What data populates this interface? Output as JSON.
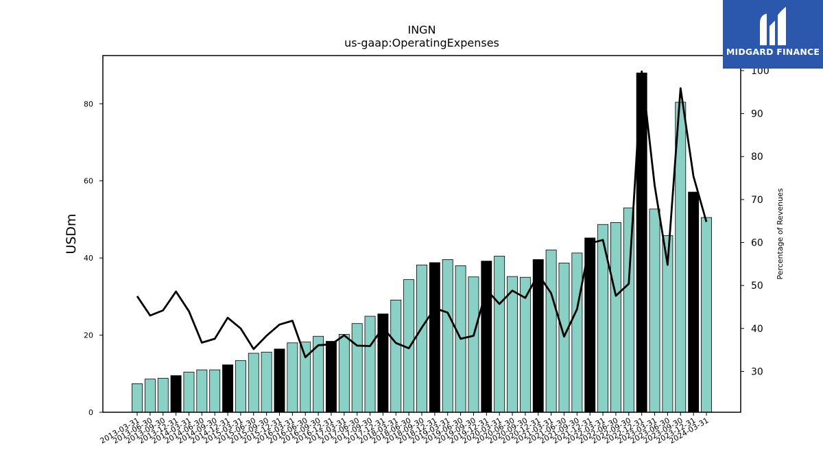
{
  "brand": {
    "name": "MIDGARD FINANCE"
  },
  "chart_data": {
    "type": "bar",
    "title": "INGN",
    "subtitle": "us-gaap:OperatingExpenses",
    "ylabel": "USDm",
    "y2label": "Percentage of Revenues",
    "ylim": [
      0,
      92.5
    ],
    "y2lim": [
      20.5,
      103.5
    ],
    "yticks": [
      0,
      20,
      40,
      60,
      80
    ],
    "y2ticks": [
      30,
      40,
      50,
      60,
      70,
      80,
      90,
      100
    ],
    "colors": {
      "bar": "#88d1c4",
      "bar_highlight": "#000000",
      "line": "#000000"
    },
    "categories": [
      "2013-03-31",
      "2013-06-30",
      "2013-09-30",
      "2013-12-31",
      "2014-03-31",
      "2014-06-30",
      "2014-09-30",
      "2014-12-31",
      "2015-03-31",
      "2015-06-30",
      "2015-09-30",
      "2015-12-31",
      "2016-03-31",
      "2016-06-30",
      "2016-09-30",
      "2016-12-31",
      "2017-03-31",
      "2017-06-30",
      "2017-09-30",
      "2017-12-31",
      "2018-03-31",
      "2018-06-30",
      "2018-09-30",
      "2018-12-31",
      "2019-03-31",
      "2019-06-30",
      "2019-09-30",
      "2019-12-31",
      "2020-03-31",
      "2020-06-30",
      "2020-09-30",
      "2020-12-31",
      "2021-03-31",
      "2021-06-30",
      "2021-09-30",
      "2021-12-31",
      "2022-03-31",
      "2022-06-30",
      "2022-09-30",
      "2022-12-31",
      "2023-03-31",
      "2023-06-30",
      "2023-09-30",
      "2023-12-31",
      "2024-03-31"
    ],
    "series": [
      {
        "kind": "bar",
        "axis": "left",
        "values": [
          7.4,
          8.6,
          8.8,
          9.5,
          10.4,
          11.0,
          11.0,
          12.3,
          13.4,
          15.3,
          15.6,
          16.4,
          18.0,
          18.2,
          19.7,
          18.4,
          20.2,
          23.0,
          24.9,
          25.5,
          29.1,
          34.4,
          38.2,
          38.8,
          39.6,
          38.0,
          35.1,
          39.2,
          40.5,
          35.2,
          35.0,
          39.6,
          42.1,
          38.7,
          41.3,
          45.2,
          48.7,
          49.2,
          53.0,
          88.0,
          52.7,
          45.8,
          80.4,
          57.1,
          50.5
        ],
        "highlighted": [
          false,
          false,
          false,
          true,
          false,
          false,
          false,
          true,
          false,
          false,
          false,
          true,
          false,
          false,
          false,
          true,
          false,
          false,
          false,
          true,
          false,
          false,
          false,
          true,
          false,
          false,
          false,
          true,
          false,
          false,
          false,
          true,
          false,
          false,
          false,
          true,
          false,
          false,
          false,
          true,
          false,
          false,
          false,
          true,
          false
        ]
      },
      {
        "kind": "line",
        "axis": "right",
        "values": [
          47.5,
          43.0,
          44.2,
          48.6,
          44.0,
          36.7,
          37.6,
          42.5,
          40.0,
          35.2,
          38.3,
          40.9,
          41.8,
          33.3,
          36.1,
          36.3,
          38.4,
          36.0,
          35.9,
          40.2,
          36.6,
          35.4,
          40.2,
          44.7,
          43.7,
          37.6,
          38.3,
          49.0,
          45.7,
          48.8,
          47.1,
          52.6,
          48.2,
          38.1,
          44.5,
          59.8,
          60.6,
          47.6,
          50.4,
          99.8,
          73.3,
          54.8,
          95.9,
          75.4,
          64.8
        ]
      }
    ]
  }
}
